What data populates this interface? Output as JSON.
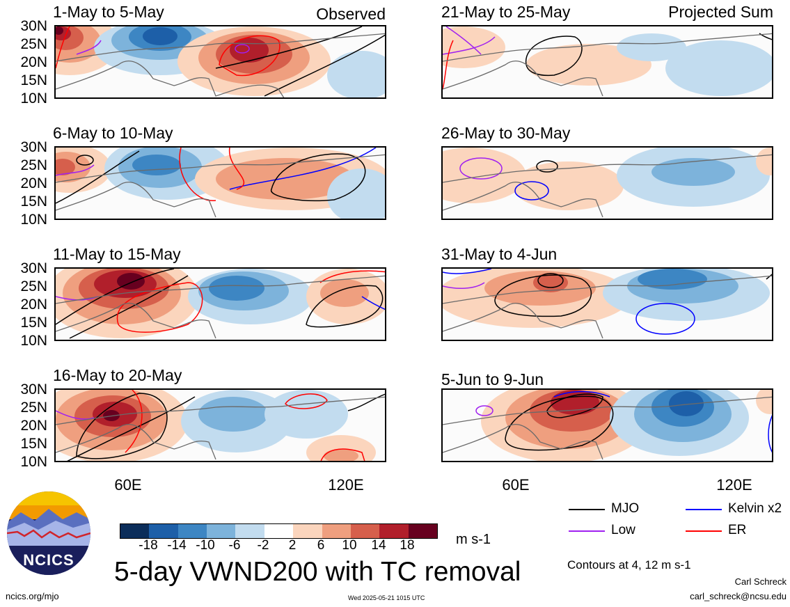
{
  "figure": {
    "main_title": "5-day VWND200 with TC removal",
    "left_header": "Observed",
    "right_header": "Projected Sum",
    "units": "m s-1",
    "contour_note": "Contours at 4, 12 m s-1",
    "credit_name": "Carl Schreck",
    "credit_email": "carl_schreck@ncsu.edu",
    "site_url": "ncics.org/mjo",
    "timestamp": "Wed 2025-05-21 1015 UTC",
    "logo_text": "NCICS"
  },
  "lat_labels": [
    "30N",
    "25N",
    "20N",
    "15N",
    "10N"
  ],
  "lon_labels": [
    "60E",
    "120E"
  ],
  "colorbar": {
    "ticks": [
      "-18",
      "-14",
      "-10",
      "-6",
      "-2",
      "2",
      "6",
      "10",
      "14",
      "18"
    ],
    "colors": [
      "#0b2d5a",
      "#1d5fa8",
      "#3d86c3",
      "#7db3db",
      "#c2dcef",
      "#ffffff",
      "#fbd5bd",
      "#ef9f7f",
      "#d65f4c",
      "#b11f2b",
      "#67001f"
    ]
  },
  "legend": [
    {
      "label": "MJO",
      "color": "#000000"
    },
    {
      "label": "Kelvin x2",
      "color": "#0000ff"
    },
    {
      "label": "Low",
      "color": "#a020f0"
    },
    {
      "label": "ER",
      "color": "#ff0000"
    }
  ],
  "panels": [
    {
      "title": "1-May to 5-May",
      "column": "observed"
    },
    {
      "title": "6-May to 10-May",
      "column": "observed"
    },
    {
      "title": "11-May to 15-May",
      "column": "observed"
    },
    {
      "title": "16-May to 20-May",
      "column": "observed"
    },
    {
      "title": "21-May to 25-May",
      "column": "projected"
    },
    {
      "title": "26-May to 30-May",
      "column": "projected"
    },
    {
      "title": "31-May to 4-Jun",
      "column": "projected"
    },
    {
      "title": "5-Jun to 9-Jun",
      "column": "projected"
    }
  ]
}
